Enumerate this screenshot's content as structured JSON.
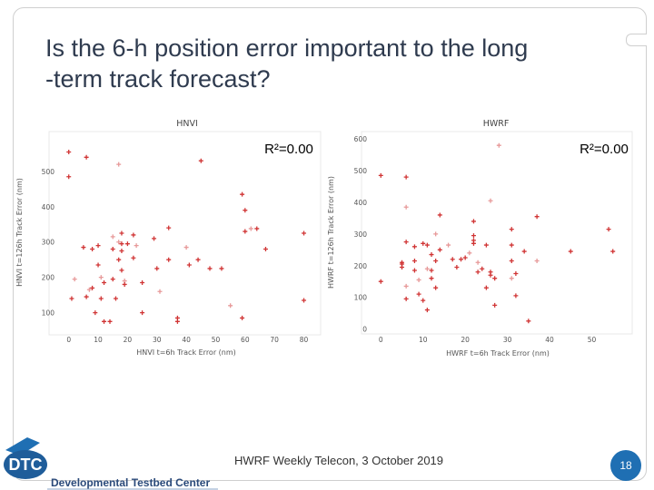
{
  "slide": {
    "title_lines": [
      "Is the 6-h position error important to the long",
      "-term track forecast?"
    ],
    "footer": "HWRF Weekly Telecon, 3 October 2019",
    "page_number": "18",
    "logo_text": "DTC",
    "logo_subtext": "Developmental Testbed Center",
    "colors": {
      "title": "#2f3b4f",
      "marker": "#cc1f1f",
      "accent": "#1f6fb3"
    }
  },
  "chart_data": [
    {
      "type": "scatter",
      "title": "HNVI",
      "xlabel": "HNVI t=6h Track Error (nm)",
      "ylabel": "HNVI t=126h Track Error (nm)",
      "annotation": "R²=0.00",
      "xticks": [
        0,
        10,
        20,
        30,
        40,
        50,
        60,
        70,
        80
      ],
      "yticks": [
        100,
        200,
        300,
        400,
        500
      ],
      "xlim": [
        -3,
        82
      ],
      "ylim": [
        45,
        605
      ],
      "points": [
        [
          0,
          555
        ],
        [
          0,
          485
        ],
        [
          6,
          540
        ],
        [
          17,
          520
        ],
        [
          45,
          530
        ],
        [
          59,
          435
        ],
        [
          60,
          390
        ],
        [
          60,
          330
        ],
        [
          62,
          338
        ],
        [
          64,
          338
        ],
        [
          67,
          280
        ],
        [
          80,
          325
        ],
        [
          80,
          135
        ],
        [
          2,
          195
        ],
        [
          1,
          140
        ],
        [
          5,
          285
        ],
        [
          8,
          280
        ],
        [
          8,
          170
        ],
        [
          7,
          165
        ],
        [
          6,
          145
        ],
        [
          9,
          100
        ],
        [
          10,
          290
        ],
        [
          10,
          235
        ],
        [
          11,
          200
        ],
        [
          11,
          140
        ],
        [
          12,
          75
        ],
        [
          12,
          185
        ],
        [
          14,
          75
        ],
        [
          15,
          315
        ],
        [
          15,
          280
        ],
        [
          15,
          195
        ],
        [
          16,
          140
        ],
        [
          17,
          250
        ],
        [
          17,
          300
        ],
        [
          18,
          325
        ],
        [
          18,
          295
        ],
        [
          18,
          275
        ],
        [
          18,
          220
        ],
        [
          19,
          190
        ],
        [
          19,
          180
        ],
        [
          20,
          295
        ],
        [
          22,
          320
        ],
        [
          22,
          255
        ],
        [
          23,
          290
        ],
        [
          25,
          185
        ],
        [
          25,
          100
        ],
        [
          29,
          310
        ],
        [
          30,
          225
        ],
        [
          31,
          160
        ],
        [
          34,
          340
        ],
        [
          34,
          250
        ],
        [
          37,
          85
        ],
        [
          37,
          75
        ],
        [
          40,
          285
        ],
        [
          41,
          235
        ],
        [
          44,
          250
        ],
        [
          48,
          225
        ],
        [
          52,
          225
        ],
        [
          55,
          120
        ],
        [
          59,
          85
        ]
      ]
    },
    {
      "type": "scatter",
      "title": "HWRF",
      "xlabel": "HWRF t=6h Track Error (nm)",
      "ylabel": "HWRF t=126h Track Error (nm)",
      "annotation": "R²=0.00",
      "xticks": [
        0,
        10,
        20,
        30,
        40,
        50
      ],
      "yticks": [
        0,
        100,
        200,
        300,
        400,
        500,
        600
      ],
      "xlim": [
        -2,
        57
      ],
      "ylim": [
        -10,
        615
      ],
      "points": [
        [
          0,
          485
        ],
        [
          0,
          150
        ],
        [
          6,
          480
        ],
        [
          6,
          385
        ],
        [
          6,
          275
        ],
        [
          5,
          210
        ],
        [
          5,
          205
        ],
        [
          5,
          195
        ],
        [
          6,
          135
        ],
        [
          6,
          95
        ],
        [
          8,
          260
        ],
        [
          8,
          215
        ],
        [
          8,
          185
        ],
        [
          9,
          155
        ],
        [
          9,
          110
        ],
        [
          10,
          270
        ],
        [
          10,
          90
        ],
        [
          11,
          265
        ],
        [
          11,
          190
        ],
        [
          11,
          60
        ],
        [
          12,
          235
        ],
        [
          12,
          185
        ],
        [
          12,
          160
        ],
        [
          13,
          300
        ],
        [
          13,
          215
        ],
        [
          13,
          130
        ],
        [
          14,
          360
        ],
        [
          14,
          250
        ],
        [
          16,
          265
        ],
        [
          17,
          220
        ],
        [
          18,
          195
        ],
        [
          19,
          220
        ],
        [
          20,
          225
        ],
        [
          21,
          240
        ],
        [
          22,
          340
        ],
        [
          22,
          295
        ],
        [
          22,
          280
        ],
        [
          22,
          270
        ],
        [
          23,
          210
        ],
        [
          23,
          180
        ],
        [
          24,
          190
        ],
        [
          25,
          265
        ],
        [
          25,
          130
        ],
        [
          26,
          405
        ],
        [
          26,
          180
        ],
        [
          26,
          170
        ],
        [
          27,
          160
        ],
        [
          27,
          75
        ],
        [
          28,
          580
        ],
        [
          31,
          315
        ],
        [
          31,
          265
        ],
        [
          31,
          215
        ],
        [
          32,
          175
        ],
        [
          31,
          160
        ],
        [
          32,
          105
        ],
        [
          34,
          245
        ],
        [
          35,
          25
        ],
        [
          37,
          355
        ],
        [
          37,
          215
        ],
        [
          45,
          245
        ],
        [
          54,
          315
        ],
        [
          55,
          245
        ]
      ]
    }
  ]
}
